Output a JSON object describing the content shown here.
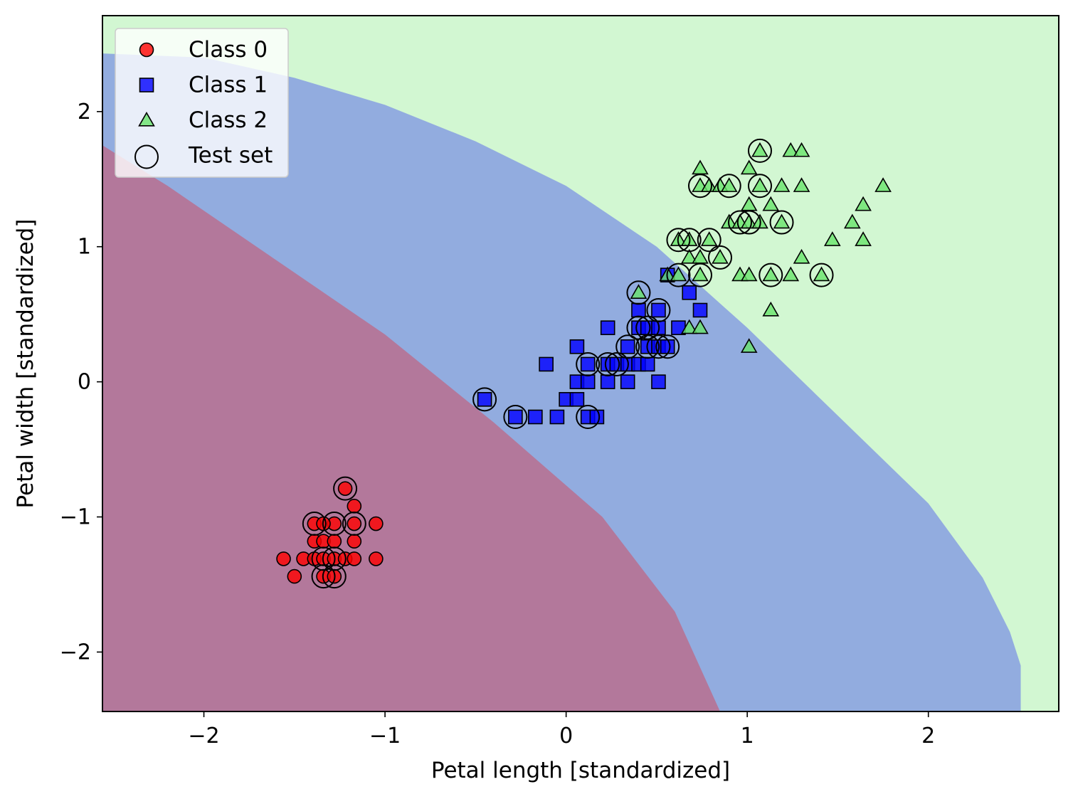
{
  "chart_data": {
    "type": "scatter",
    "title": "",
    "xlabel": "Petal length [standardized]",
    "ylabel": "Petal width [standardized]",
    "xlim": [
      -2.56,
      2.72
    ],
    "ylim": [
      -2.44,
      2.71
    ],
    "x_ticks": [
      -2,
      -1,
      0,
      1,
      2
    ],
    "y_ticks": [
      -2,
      -1,
      0,
      1,
      2
    ],
    "x_tick_labels": [
      "−2",
      "−1",
      "0",
      "1",
      "2"
    ],
    "y_tick_labels": [
      "−2",
      "−1",
      "0",
      "1",
      "2"
    ],
    "grid": false,
    "legend_position": "top-left",
    "decision_regions": {
      "class_0_color": "#ff0000",
      "class_1_color": "#0000ff",
      "class_2_color": "#69e36b",
      "opacity": 0.3,
      "boundary_0_1": [
        [
          -2.56,
          1.75
        ],
        [
          -2.2,
          1.45
        ],
        [
          -1.6,
          0.9
        ],
        [
          -1.0,
          0.35
        ],
        [
          -0.4,
          -0.3
        ],
        [
          0.2,
          -1.0
        ],
        [
          0.6,
          -1.7
        ],
        [
          0.85,
          -2.44
        ]
      ],
      "boundary_1_2": [
        [
          -2.56,
          2.43
        ],
        [
          -2.0,
          2.4
        ],
        [
          -1.5,
          2.25
        ],
        [
          -1.0,
          2.05
        ],
        [
          -0.5,
          1.78
        ],
        [
          0.0,
          1.45
        ],
        [
          0.5,
          1.0
        ],
        [
          1.0,
          0.4
        ],
        [
          1.5,
          -0.25
        ],
        [
          2.0,
          -0.9
        ],
        [
          2.3,
          -1.45
        ],
        [
          2.45,
          -1.85
        ],
        [
          2.51,
          -2.1
        ],
        [
          2.51,
          -2.44
        ]
      ]
    },
    "series": [
      {
        "name": "Class 0",
        "marker": "circle",
        "color": "#ff0000",
        "points": [
          [
            -1.22,
            -0.79
          ],
          [
            -1.17,
            -0.92
          ],
          [
            -1.39,
            -1.05
          ],
          [
            -1.28,
            -1.05
          ],
          [
            -1.17,
            -1.05
          ],
          [
            -1.05,
            -1.05
          ],
          [
            -1.34,
            -1.05
          ],
          [
            -1.39,
            -1.18
          ],
          [
            -1.34,
            -1.18
          ],
          [
            -1.28,
            -1.18
          ],
          [
            -1.17,
            -1.18
          ],
          [
            -1.56,
            -1.31
          ],
          [
            -1.45,
            -1.31
          ],
          [
            -1.39,
            -1.31
          ],
          [
            -1.34,
            -1.31
          ],
          [
            -1.28,
            -1.31
          ],
          [
            -1.22,
            -1.31
          ],
          [
            -1.17,
            -1.31
          ],
          [
            -1.05,
            -1.31
          ],
          [
            -1.5,
            -1.44
          ],
          [
            -1.34,
            -1.44
          ],
          [
            -1.28,
            -1.44
          ]
        ]
      },
      {
        "name": "Class 1",
        "marker": "square",
        "color": "#0000ff",
        "points": [
          [
            -0.45,
            -0.13
          ],
          [
            -0.28,
            -0.26
          ],
          [
            -0.17,
            -0.26
          ],
          [
            -0.05,
            -0.26
          ],
          [
            0.12,
            -0.26
          ],
          [
            0.17,
            -0.26
          ],
          [
            -0.11,
            0.13
          ],
          [
            0.06,
            0.26
          ],
          [
            0.0,
            -0.13
          ],
          [
            0.06,
            -0.13
          ],
          [
            0.06,
            0.0
          ],
          [
            0.12,
            0.0
          ],
          [
            0.23,
            0.0
          ],
          [
            0.34,
            0.0
          ],
          [
            0.51,
            0.0
          ],
          [
            0.12,
            0.13
          ],
          [
            0.23,
            0.13
          ],
          [
            0.28,
            0.13
          ],
          [
            0.34,
            0.13
          ],
          [
            0.4,
            0.13
          ],
          [
            0.45,
            0.13
          ],
          [
            0.23,
            0.4
          ],
          [
            0.34,
            0.26
          ],
          [
            0.4,
            0.4
          ],
          [
            0.45,
            0.4
          ],
          [
            0.51,
            0.4
          ],
          [
            0.62,
            0.4
          ],
          [
            0.4,
            0.53
          ],
          [
            0.51,
            0.53
          ],
          [
            0.45,
            0.26
          ],
          [
            0.51,
            0.26
          ],
          [
            0.56,
            0.26
          ],
          [
            0.68,
            0.66
          ],
          [
            0.74,
            0.53
          ],
          [
            0.56,
            0.79
          ]
        ]
      },
      {
        "name": "Class 2",
        "marker": "triangle",
        "color": "#69e36b",
        "points": [
          [
            1.07,
            1.71
          ],
          [
            1.24,
            1.71
          ],
          [
            1.3,
            1.71
          ],
          [
            0.74,
            1.58
          ],
          [
            1.01,
            1.58
          ],
          [
            0.74,
            1.45
          ],
          [
            0.79,
            1.45
          ],
          [
            0.85,
            1.45
          ],
          [
            0.9,
            1.45
          ],
          [
            1.07,
            1.45
          ],
          [
            1.19,
            1.45
          ],
          [
            1.3,
            1.45
          ],
          [
            1.75,
            1.45
          ],
          [
            1.01,
            1.31
          ],
          [
            1.13,
            1.31
          ],
          [
            1.64,
            1.31
          ],
          [
            0.9,
            1.18
          ],
          [
            0.96,
            1.18
          ],
          [
            1.01,
            1.18
          ],
          [
            1.07,
            1.18
          ],
          [
            1.19,
            1.18
          ],
          [
            1.58,
            1.18
          ],
          [
            0.62,
            1.05
          ],
          [
            0.68,
            1.05
          ],
          [
            0.79,
            1.05
          ],
          [
            1.47,
            1.05
          ],
          [
            1.64,
            1.05
          ],
          [
            0.68,
            0.92
          ],
          [
            0.74,
            0.92
          ],
          [
            0.85,
            0.92
          ],
          [
            1.3,
            0.92
          ],
          [
            0.56,
            0.79
          ],
          [
            0.62,
            0.79
          ],
          [
            0.74,
            0.79
          ],
          [
            0.96,
            0.79
          ],
          [
            1.01,
            0.79
          ],
          [
            1.13,
            0.79
          ],
          [
            1.24,
            0.79
          ],
          [
            1.41,
            0.79
          ],
          [
            0.4,
            0.66
          ],
          [
            0.68,
            0.4
          ],
          [
            0.74,
            0.4
          ],
          [
            1.13,
            0.53
          ],
          [
            1.01,
            0.26
          ]
        ]
      }
    ],
    "test_set": {
      "name": "Test set",
      "marker": "open-circle",
      "points": [
        [
          -1.22,
          -0.79
        ],
        [
          -1.39,
          -1.05
        ],
        [
          -1.28,
          -1.05
        ],
        [
          -1.17,
          -1.05
        ],
        [
          -1.34,
          -1.31
        ],
        [
          -1.28,
          -1.31
        ],
        [
          -1.34,
          -1.44
        ],
        [
          -1.28,
          -1.44
        ],
        [
          -0.45,
          -0.13
        ],
        [
          -0.28,
          -0.26
        ],
        [
          0.12,
          -0.26
        ],
        [
          0.12,
          0.13
        ],
        [
          0.23,
          0.13
        ],
        [
          0.28,
          0.13
        ],
        [
          0.34,
          0.26
        ],
        [
          0.4,
          0.4
        ],
        [
          0.45,
          0.4
        ],
        [
          0.51,
          0.53
        ],
        [
          0.45,
          0.26
        ],
        [
          0.51,
          0.26
        ],
        [
          0.56,
          0.26
        ],
        [
          0.4,
          0.66
        ],
        [
          1.07,
          1.71
        ],
        [
          0.74,
          1.45
        ],
        [
          0.9,
          1.45
        ],
        [
          1.07,
          1.45
        ],
        [
          0.96,
          1.18
        ],
        [
          1.01,
          1.18
        ],
        [
          1.19,
          1.18
        ],
        [
          0.62,
          1.05
        ],
        [
          0.68,
          1.05
        ],
        [
          0.79,
          1.05
        ],
        [
          0.85,
          0.92
        ],
        [
          0.62,
          0.79
        ],
        [
          0.74,
          0.79
        ],
        [
          1.13,
          0.79
        ],
        [
          1.41,
          0.79
        ]
      ]
    },
    "legend": [
      {
        "label": "Class 0",
        "marker": "circle",
        "color": "#ff0000"
      },
      {
        "label": "Class 1",
        "marker": "square",
        "color": "#0000ff"
      },
      {
        "label": "Class 2",
        "marker": "triangle",
        "color": "#69e36b"
      },
      {
        "label": "Test set",
        "marker": "open-circle",
        "color": "#000000"
      }
    ]
  }
}
